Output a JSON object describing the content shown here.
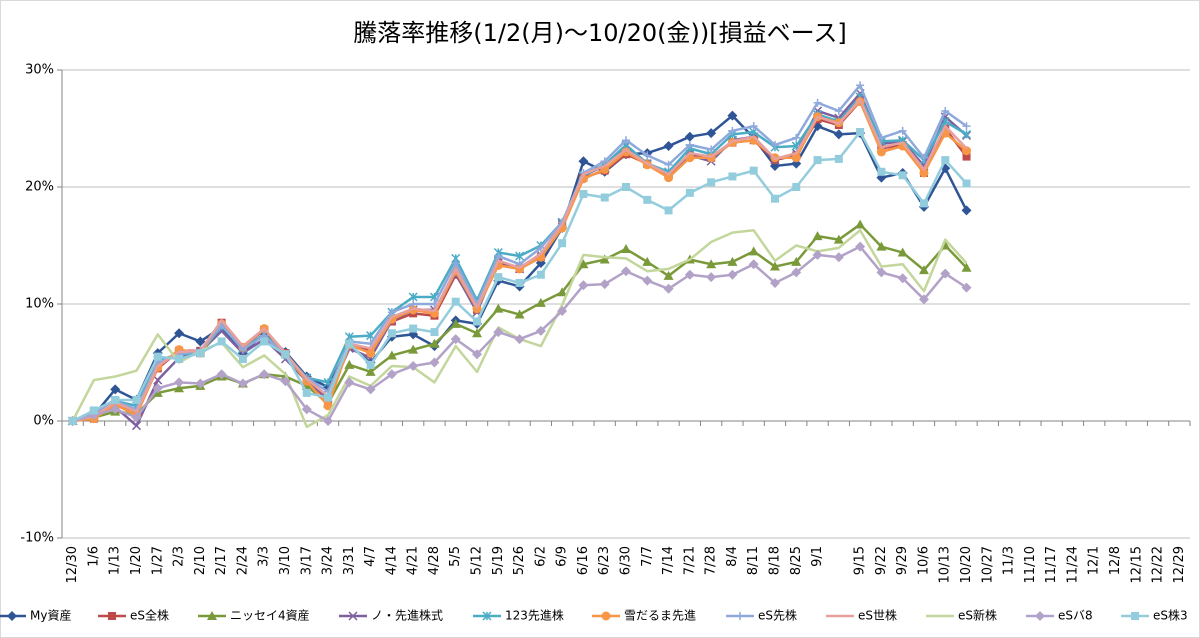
{
  "chart_data": {
    "type": "line",
    "title": "騰落率推移(1/2(月)～10/20(金))[損益ベース]",
    "categories": [
      "12/30",
      "1/6",
      "1/13",
      "1/20",
      "1/27",
      "2/3",
      "2/10",
      "2/17",
      "2/24",
      "3/3",
      "3/10",
      "3/17",
      "3/24",
      "3/31",
      "4/7",
      "4/14",
      "4/21",
      "4/28",
      "5/5",
      "5/12",
      "5/19",
      "5/26",
      "6/2",
      "6/9",
      "6/16",
      "6/23",
      "6/30",
      "7/7",
      "7/14",
      "7/21",
      "7/28",
      "8/4",
      "8/11",
      "8/18",
      "8/25",
      "9/1",
      null,
      "9/15",
      "9/22",
      "9/29",
      "10/6",
      "10/13",
      "10/20",
      "10/27",
      "11/3",
      "11/10",
      "11/17",
      "11/24",
      "12/1",
      "12/8",
      "12/15",
      "12/22",
      "12/29"
    ],
    "ylim": [
      -10,
      30
    ],
    "yticks": [
      {
        "value": -10,
        "label": "-10%"
      },
      {
        "value": 0,
        "label": "0%"
      },
      {
        "value": 10,
        "label": "10%"
      },
      {
        "value": 20,
        "label": "20%"
      },
      {
        "value": 30,
        "label": "30%"
      }
    ],
    "grid": true,
    "legend": "bottom",
    "series": [
      {
        "name": "My資産",
        "color": "#2f5597",
        "marker": "diamond",
        "values": [
          0,
          0.5,
          2.7,
          1.8,
          5.8,
          7.5,
          6.8,
          8.0,
          5.8,
          7.5,
          5.9,
          3.8,
          2.9,
          6.5,
          5.0,
          7.2,
          7.4,
          6.4,
          8.6,
          8.3,
          12.0,
          11.5,
          13.5,
          16.5,
          22.2,
          21.3,
          22.8,
          22.9,
          23.5,
          24.3,
          24.6,
          26.1,
          24.2,
          21.8,
          22.0,
          25.2,
          24.5,
          24.6,
          20.8,
          21.2,
          18.3,
          21.6,
          18.0,
          null,
          null,
          null,
          null,
          null,
          null,
          null,
          null,
          null,
          null
        ]
      },
      {
        "name": "eS全株",
        "color": "#be4b48",
        "marker": "square",
        "values": [
          0,
          0.2,
          1.5,
          0.8,
          4.5,
          6.0,
          6.0,
          8.4,
          6.3,
          7.8,
          5.8,
          3.5,
          1.8,
          6.5,
          6.0,
          8.5,
          9.2,
          9.0,
          12.5,
          9.5,
          13.5,
          13.0,
          14.0,
          16.8,
          20.8,
          21.4,
          22.8,
          22.0,
          21.0,
          22.8,
          22.5,
          23.8,
          24.0,
          22.3,
          22.7,
          25.8,
          25.3,
          27.3,
          23.3,
          23.6,
          21.2,
          25.0,
          22.6,
          null,
          null,
          null,
          null,
          null,
          null,
          null,
          null,
          null,
          null
        ]
      },
      {
        "name": "ニッセイ4資産",
        "color": "#7a9a3a",
        "marker": "triangle",
        "values": [
          0,
          0.3,
          0.8,
          0.6,
          2.4,
          2.8,
          3.0,
          3.8,
          3.2,
          4.0,
          3.8,
          3.0,
          1.5,
          4.8,
          4.2,
          5.6,
          6.1,
          6.6,
          8.3,
          7.5,
          9.6,
          9.1,
          10.1,
          11.0,
          13.4,
          13.8,
          14.7,
          13.6,
          12.4,
          13.8,
          13.4,
          13.6,
          14.5,
          13.2,
          13.6,
          15.8,
          15.5,
          16.8,
          14.9,
          14.4,
          12.9,
          15.0,
          13.1,
          null,
          null,
          null,
          null,
          null,
          null,
          null,
          null,
          null,
          null
        ]
      },
      {
        "name": "ノ・先進株式",
        "color": "#7d60a0",
        "marker": "x",
        "values": [
          0,
          0.6,
          1.2,
          -0.4,
          3.5,
          5.4,
          5.9,
          7.7,
          5.8,
          7.0,
          5.3,
          3.4,
          2.0,
          6.2,
          5.4,
          8.6,
          9.5,
          9.5,
          12.6,
          9.3,
          13.7,
          13.0,
          14.2,
          16.9,
          21.0,
          21.8,
          23.5,
          22.0,
          21.2,
          22.7,
          22.2,
          24.0,
          24.3,
          22.3,
          22.9,
          26.5,
          25.9,
          28.0,
          23.7,
          23.9,
          21.8,
          26.0,
          24.4,
          null,
          null,
          null,
          null,
          null,
          null,
          null,
          null,
          null,
          null
        ]
      },
      {
        "name": "123先進株",
        "color": "#4bacc6",
        "marker": "asterisk",
        "values": [
          0,
          0.8,
          1.7,
          1.3,
          5.2,
          5.7,
          5.8,
          8.1,
          6.2,
          7.4,
          5.7,
          3.7,
          3.3,
          7.2,
          7.3,
          9.3,
          10.6,
          10.6,
          13.9,
          10.3,
          14.4,
          14.1,
          15.0,
          17.0,
          21.0,
          21.9,
          23.6,
          22.0,
          21.3,
          23.3,
          22.8,
          24.5,
          24.7,
          23.4,
          23.5,
          26.2,
          25.6,
          27.7,
          23.9,
          24.0,
          22.3,
          25.6,
          24.5,
          null,
          null,
          null,
          null,
          null,
          null,
          null,
          null,
          null,
          null
        ]
      },
      {
        "name": "雪だるま先進",
        "color": "#f79646",
        "marker": "circle",
        "values": [
          0,
          0.2,
          1.4,
          0.5,
          4.6,
          6.1,
          5.8,
          8.3,
          6.3,
          7.9,
          5.7,
          3.4,
          1.3,
          6.5,
          5.8,
          8.7,
          9.5,
          9.2,
          12.8,
          9.6,
          13.3,
          13.0,
          14.0,
          16.5,
          20.7,
          21.5,
          23.0,
          21.9,
          20.8,
          22.5,
          22.5,
          23.8,
          24.0,
          22.5,
          22.5,
          26.0,
          25.5,
          27.3,
          23.0,
          23.5,
          21.2,
          24.6,
          23.1,
          null,
          null,
          null,
          null,
          null,
          null,
          null,
          null,
          null,
          null
        ]
      },
      {
        "name": "eS先株",
        "color": "#8ea9db",
        "marker": "plus",
        "values": [
          0,
          0.7,
          1.7,
          1.0,
          5.0,
          5.7,
          6.0,
          8.2,
          6.1,
          7.3,
          5.6,
          3.7,
          2.5,
          6.8,
          6.6,
          9.3,
          10.0,
          10.0,
          13.5,
          10.0,
          14.1,
          13.4,
          14.8,
          17.0,
          21.2,
          22.2,
          24.0,
          22.7,
          21.9,
          23.6,
          23.2,
          24.8,
          25.2,
          23.6,
          24.2,
          27.2,
          26.5,
          28.7,
          24.2,
          24.8,
          22.5,
          26.5,
          25.2,
          null,
          null,
          null,
          null,
          null,
          null,
          null,
          null,
          null,
          null
        ]
      },
      {
        "name": "eS世株",
        "color": "#e6a0a0",
        "marker": "none",
        "values": [
          0,
          0.4,
          1.6,
          0.8,
          4.7,
          5.9,
          6.0,
          8.6,
          6.4,
          7.9,
          5.8,
          3.6,
          2.1,
          6.6,
          6.2,
          8.9,
          9.6,
          9.4,
          13.0,
          9.7,
          13.7,
          13.1,
          14.3,
          16.8,
          21.1,
          21.8,
          23.2,
          22.0,
          21.1,
          22.9,
          22.6,
          23.9,
          24.3,
          22.4,
          22.9,
          26.0,
          25.4,
          27.5,
          23.4,
          23.8,
          21.5,
          25.2,
          23.3,
          null,
          null,
          null,
          null,
          null,
          null,
          null,
          null,
          null,
          null
        ]
      },
      {
        "name": "eS新株",
        "color": "#c3d69b",
        "marker": "none",
        "values": [
          0,
          3.5,
          3.8,
          4.3,
          7.4,
          5.0,
          6.0,
          6.7,
          4.6,
          5.6,
          4.0,
          -0.5,
          0.5,
          3.8,
          3.0,
          4.7,
          4.6,
          3.3,
          6.4,
          4.2,
          8.0,
          7.0,
          6.4,
          9.9,
          14.2,
          14.0,
          13.9,
          12.8,
          13.0,
          13.8,
          15.3,
          16.1,
          16.3,
          13.7,
          15.0,
          14.5,
          14.8,
          16.3,
          13.2,
          13.4,
          11.1,
          15.5,
          13.5,
          null,
          null,
          null,
          null,
          null,
          null,
          null,
          null,
          null,
          null
        ]
      },
      {
        "name": "eSバ8",
        "color": "#b3a2c7",
        "marker": "diamond",
        "values": [
          0,
          0.5,
          1.0,
          0.3,
          2.8,
          3.3,
          3.2,
          4.0,
          3.2,
          4.0,
          3.4,
          1.0,
          0.0,
          3.3,
          2.7,
          4.0,
          4.7,
          5.0,
          7.0,
          5.7,
          7.6,
          7.0,
          7.7,
          9.4,
          11.6,
          11.7,
          12.8,
          12.0,
          11.3,
          12.5,
          12.3,
          12.5,
          13.4,
          11.8,
          12.7,
          14.2,
          14.0,
          14.9,
          12.7,
          12.2,
          10.4,
          12.6,
          11.4,
          null,
          null,
          null,
          null,
          null,
          null,
          null,
          null,
          null,
          null
        ]
      },
      {
        "name": "eS株3",
        "color": "#93cddd",
        "marker": "square",
        "values": [
          0,
          0.9,
          1.8,
          1.8,
          5.5,
          5.3,
          5.8,
          6.8,
          5.3,
          6.8,
          5.7,
          2.4,
          2.0,
          6.6,
          4.8,
          7.5,
          7.9,
          7.6,
          10.2,
          8.5,
          12.3,
          11.8,
          12.5,
          15.2,
          19.4,
          19.1,
          20.0,
          18.9,
          18.0,
          19.5,
          20.4,
          20.9,
          21.4,
          19.0,
          20.0,
          22.3,
          22.4,
          24.7,
          21.3,
          21.0,
          18.6,
          22.3,
          20.3,
          null,
          null,
          null,
          null,
          null,
          null,
          null,
          null,
          null,
          null
        ]
      }
    ]
  }
}
